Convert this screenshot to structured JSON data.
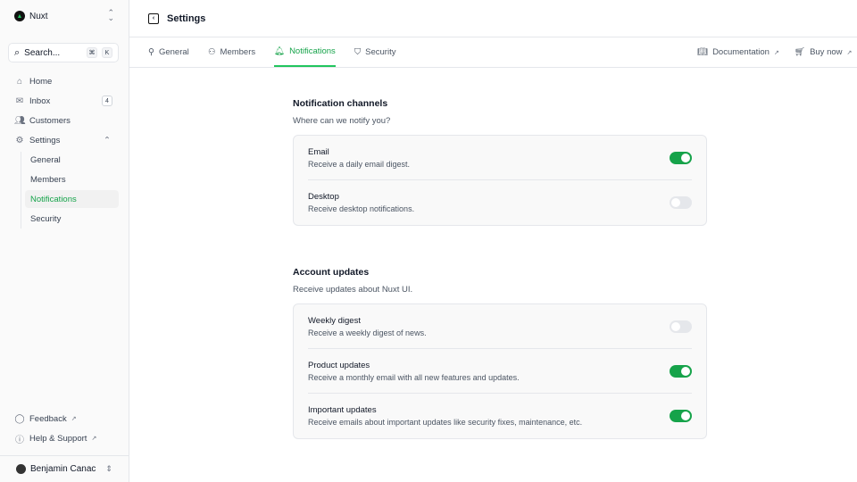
{
  "sidebar": {
    "team": "Nuxt",
    "search": {
      "label": "Search...",
      "kbd": [
        "⌘",
        "K"
      ]
    },
    "items": [
      {
        "label": "Home",
        "icon": "home-icon"
      },
      {
        "label": "Inbox",
        "icon": "inbox-icon",
        "badge": "4"
      },
      {
        "label": "Customers",
        "icon": "users-icon"
      },
      {
        "label": "Settings",
        "icon": "gear-icon"
      }
    ],
    "settings_sub": [
      {
        "label": "General"
      },
      {
        "label": "Members"
      },
      {
        "label": "Notifications",
        "active": true
      },
      {
        "label": "Security"
      }
    ],
    "footer": [
      {
        "label": "Feedback",
        "icon": "chat-icon"
      },
      {
        "label": "Help & Support",
        "icon": "info-icon"
      }
    ],
    "user": "Benjamin Canac"
  },
  "header": {
    "title": "Settings"
  },
  "tabs": [
    {
      "label": "General"
    },
    {
      "label": "Members"
    },
    {
      "label": "Notifications",
      "active": true
    },
    {
      "label": "Security"
    }
  ],
  "links": [
    {
      "label": "Documentation"
    },
    {
      "label": "Buy now"
    }
  ],
  "sections": [
    {
      "title": "Notification channels",
      "subtitle": "Where can we notify you?",
      "rows": [
        {
          "label": "Email",
          "desc": "Receive a daily email digest.",
          "on": true
        },
        {
          "label": "Desktop",
          "desc": "Receive desktop notifications.",
          "on": false
        }
      ]
    },
    {
      "title": "Account updates",
      "subtitle": "Receive updates about Nuxt UI.",
      "rows": [
        {
          "label": "Weekly digest",
          "desc": "Receive a weekly digest of news.",
          "on": false
        },
        {
          "label": "Product updates",
          "desc": "Receive a monthly email with all new features and updates.",
          "on": true
        },
        {
          "label": "Important updates",
          "desc": "Receive emails about important updates like security fixes, maintenance, etc.",
          "on": true
        }
      ]
    }
  ],
  "colors": {
    "accent": "#16a34a"
  }
}
